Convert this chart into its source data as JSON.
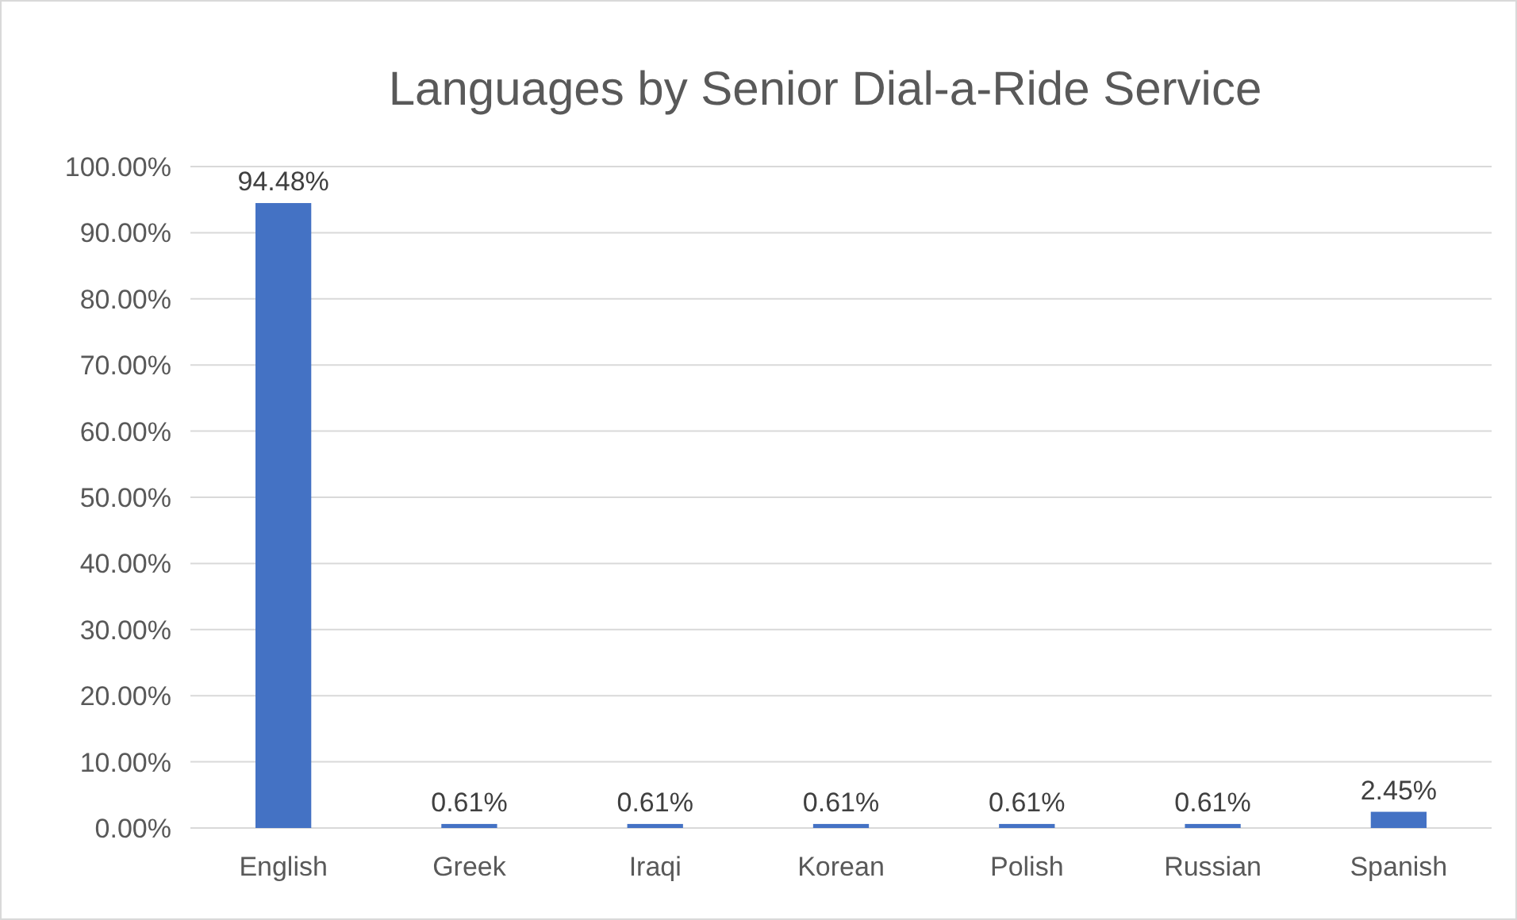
{
  "chart_data": {
    "type": "bar",
    "title": "Languages by Senior Dial-a-Ride Service",
    "categories": [
      "English",
      "Greek",
      "Iraqi",
      "Korean",
      "Polish",
      "Russian",
      "Spanish"
    ],
    "values": [
      94.48,
      0.61,
      0.61,
      0.61,
      0.61,
      0.61,
      2.45
    ],
    "value_labels": [
      "94.48%",
      "0.61%",
      "0.61%",
      "0.61%",
      "0.61%",
      "0.61%",
      "2.45%"
    ],
    "color": "#4472c4",
    "ylim": [
      0,
      100
    ],
    "yticks": [
      {
        "value": 0,
        "label": "0.00%"
      },
      {
        "value": 10,
        "label": "10.00%"
      },
      {
        "value": 20,
        "label": "20.00%"
      },
      {
        "value": 30,
        "label": "30.00%"
      },
      {
        "value": 40,
        "label": "40.00%"
      },
      {
        "value": 50,
        "label": "50.00%"
      },
      {
        "value": 60,
        "label": "60.00%"
      },
      {
        "value": 70,
        "label": "70.00%"
      },
      {
        "value": 80,
        "label": "80.00%"
      },
      {
        "value": 90,
        "label": "90.00%"
      },
      {
        "value": 100,
        "label": "100.00%"
      }
    ],
    "grid": true
  }
}
